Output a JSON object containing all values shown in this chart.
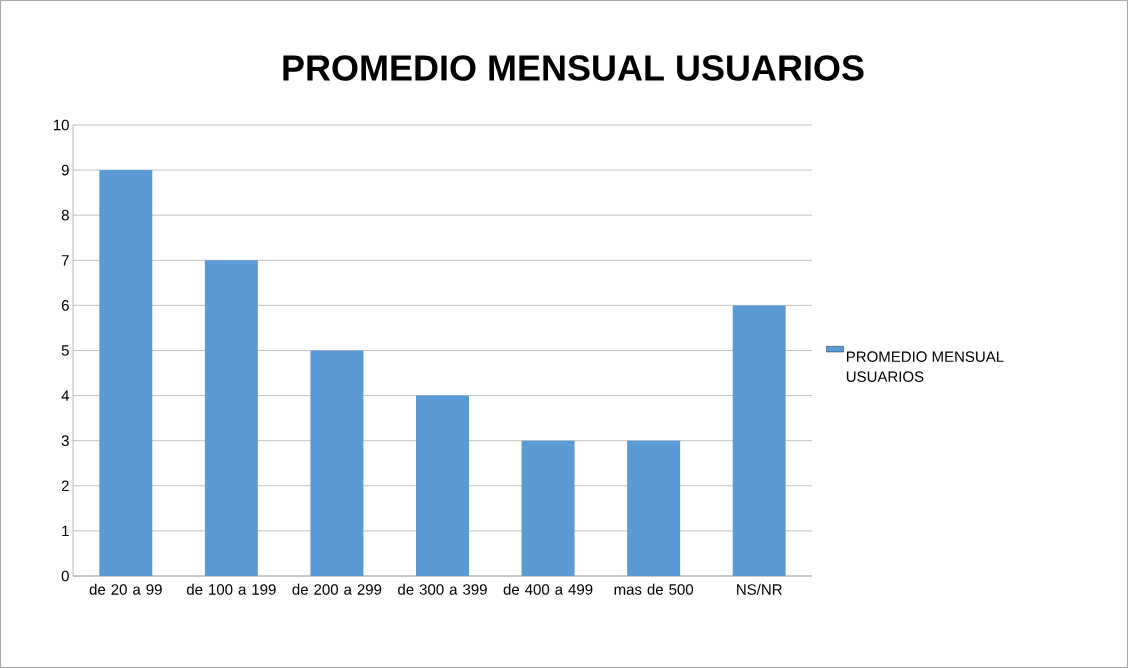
{
  "chart_data": {
    "type": "bar",
    "title": "PROMEDIO MENSUAL USUARIOS",
    "categories": [
      "de 20 a 99",
      "de 100 a 199",
      "de 200 a 299",
      "de 300 a 399",
      "de 400 a 499",
      "mas de 500",
      "NS/NR"
    ],
    "series": [
      {
        "name": "PROMEDIO MENSUAL USUARIOS",
        "color": "#5b9bd5",
        "values": [
          9,
          7,
          5,
          4,
          3,
          3,
          6
        ]
      }
    ],
    "ylim": [
      0,
      10
    ],
    "yticks": [
      0,
      1,
      2,
      3,
      4,
      5,
      6,
      7,
      8,
      9,
      10
    ],
    "grid": "y",
    "legend": "right"
  }
}
